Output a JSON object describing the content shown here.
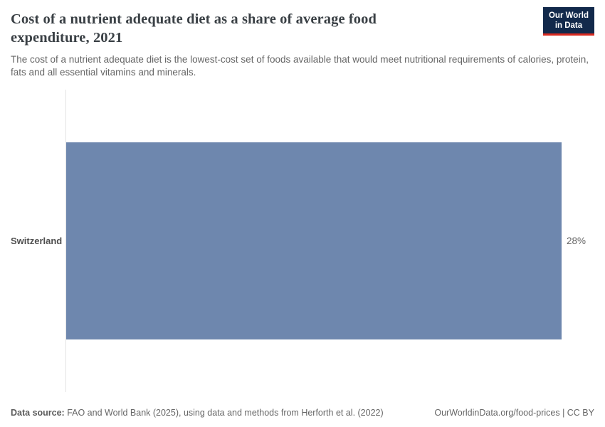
{
  "header": {
    "title": "Cost of a nutrient adequate diet as a share of average food expenditure, 2021",
    "subtitle": "The cost of a nutrient adequate diet is the lowest-cost set of foods available that would meet nutritional requirements of calories, protein, fats and all essential vitamins and minerals.",
    "logo": {
      "line1": "Our World",
      "line2": "in Data",
      "bg_color": "#12294b",
      "accent_color": "#d92a20"
    }
  },
  "chart_data": {
    "type": "bar",
    "orientation": "horizontal",
    "title": "Cost of a nutrient adequate diet as a share of average food expenditure, 2021",
    "categories": [
      "Switzerland"
    ],
    "values": [
      28
    ],
    "value_labels": [
      "28%"
    ],
    "unit": "%",
    "xlim": [
      0,
      28
    ],
    "grid": false,
    "legend": "none",
    "bar_color": "#6e87ae",
    "axis_color": "#e3e3e3"
  },
  "footer": {
    "source_label": "Data source:",
    "source_text": " FAO and World Bank (2025), using data and methods from Herforth et al. (2022)",
    "rights": "OurWorldinData.org/food-prices | CC BY"
  }
}
